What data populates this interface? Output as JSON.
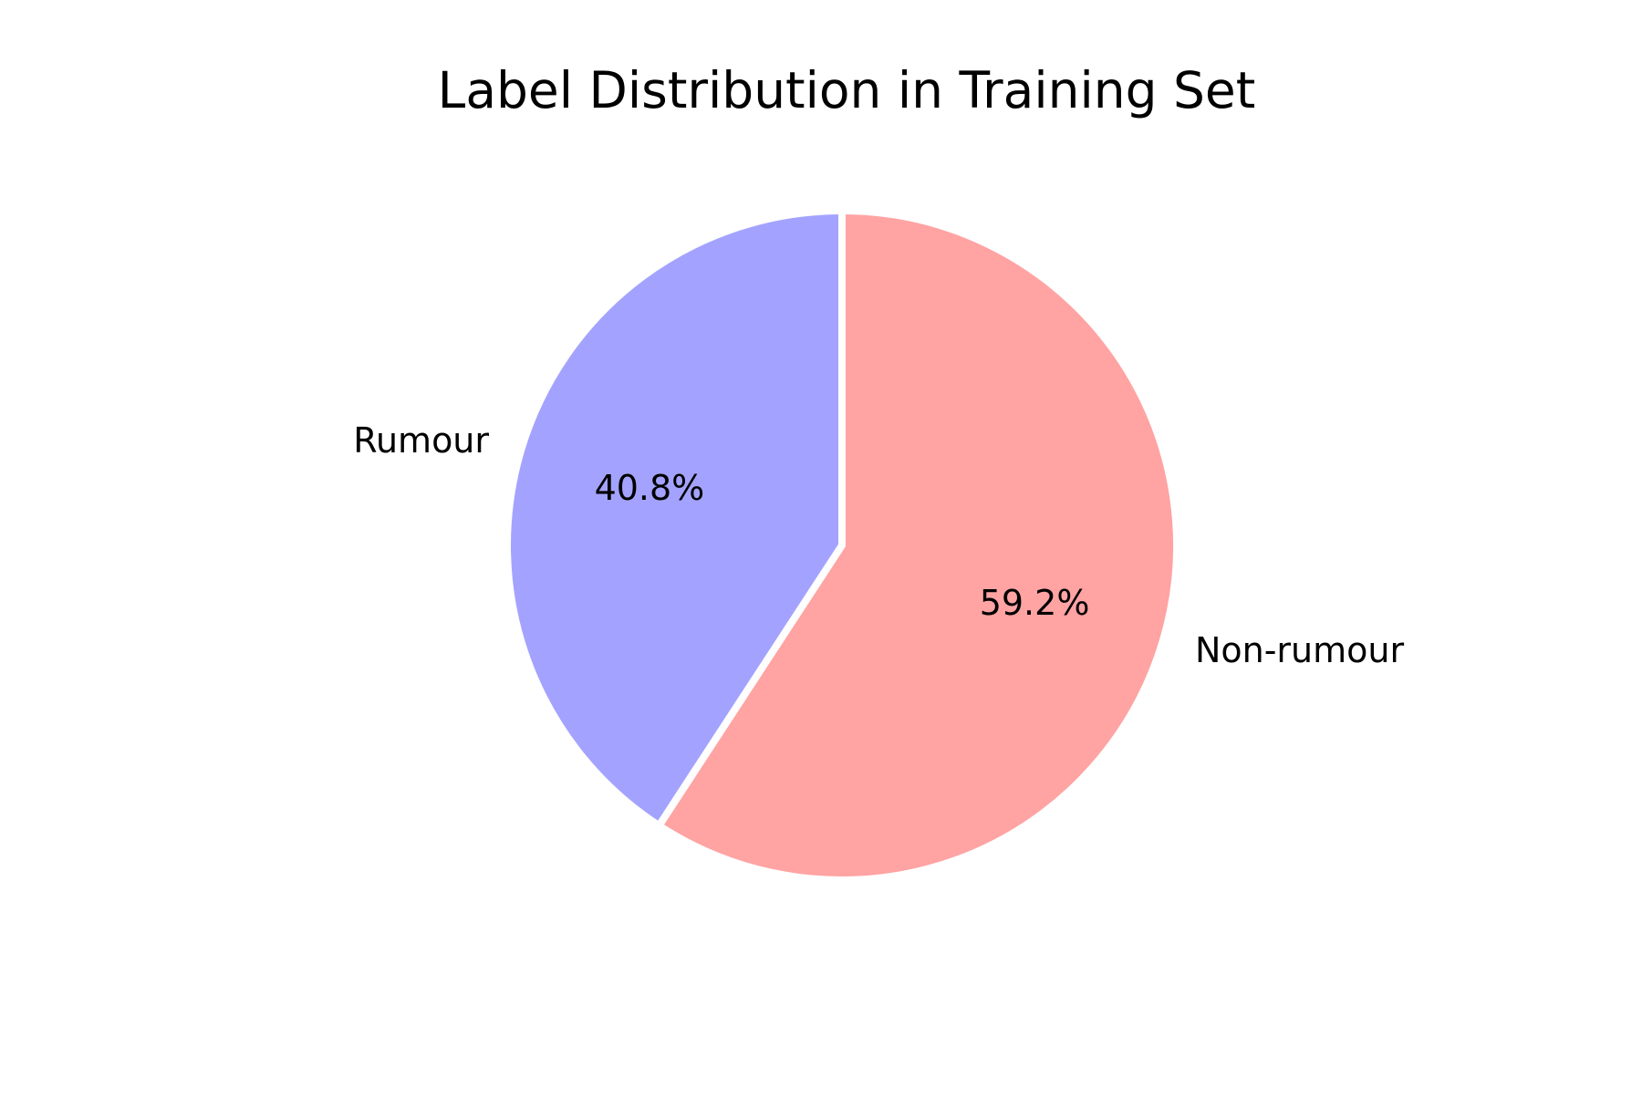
{
  "chart_data": {
    "type": "pie",
    "title": "Label Distribution in Training Set",
    "slices": [
      {
        "label": "Rumour",
        "value": 40.8,
        "pct_label": "40.8%",
        "color": "#a3a3ff"
      },
      {
        "label": "Non-rumour",
        "value": 59.2,
        "pct_label": "59.2%",
        "color": "#ffa3a3"
      }
    ],
    "start_angle_deg": 90,
    "direction": "counterclockwise",
    "legend": "none"
  }
}
